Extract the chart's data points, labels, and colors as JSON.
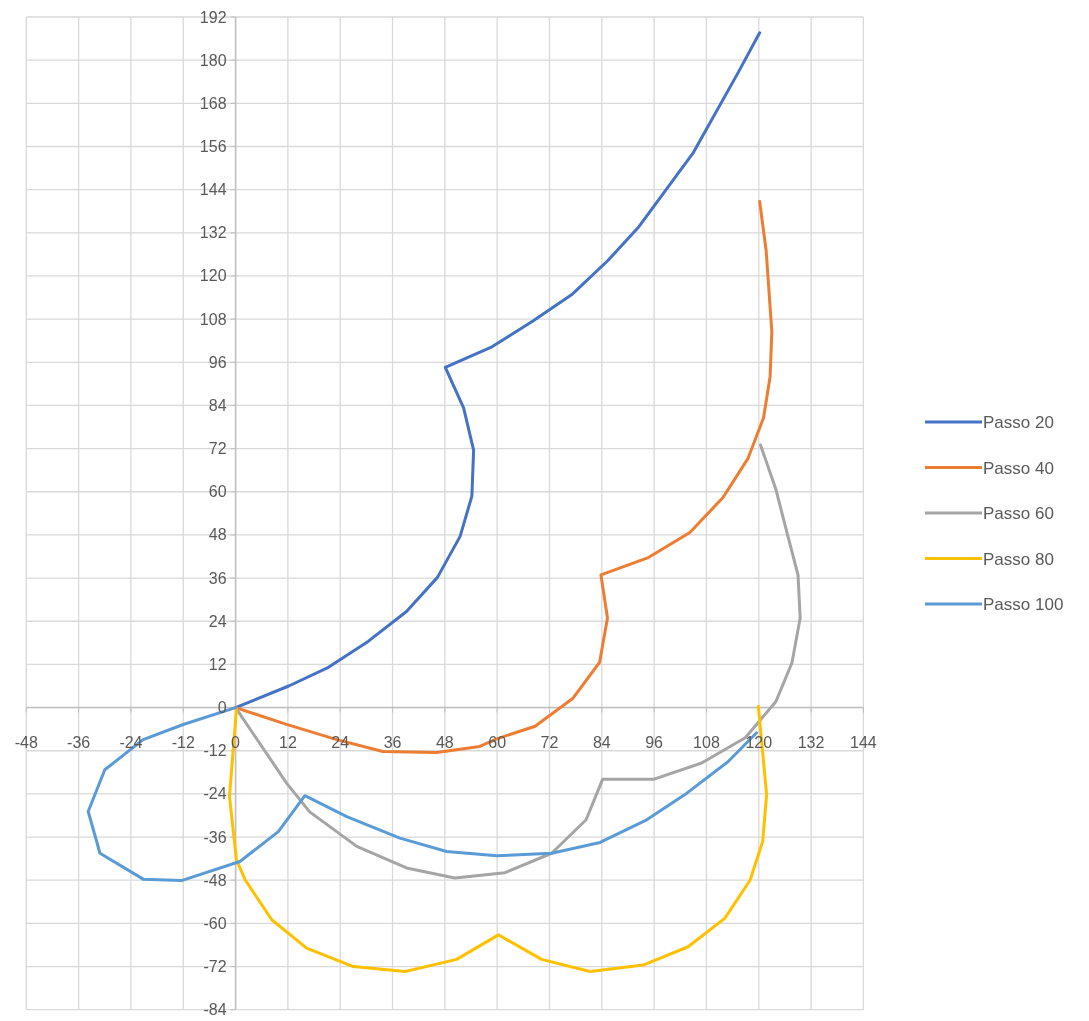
{
  "chart_data": {
    "type": "line",
    "xlim": [
      -48,
      144
    ],
    "ylim": [
      -84,
      192
    ],
    "xticks": [
      -48,
      -36,
      -24,
      -12,
      0,
      12,
      24,
      36,
      48,
      60,
      72,
      84,
      96,
      108,
      120,
      132,
      144
    ],
    "yticks": [
      -84,
      -72,
      -60,
      -48,
      -36,
      -24,
      -12,
      0,
      12,
      24,
      36,
      48,
      60,
      72,
      84,
      96,
      108,
      120,
      132,
      144,
      156,
      168,
      180,
      192
    ],
    "grid": true,
    "legend": "right",
    "marker": "none",
    "line_style": "solid",
    "series": [
      {
        "name": "Passo 20",
        "color": "#4472c4",
        "x": [
          0,
          12.2,
          21.3,
          30.4,
          39.2,
          46.3,
          51.5,
          54.2,
          54.6,
          52.3,
          48.1,
          58.8,
          68.2,
          77.3,
          85.4,
          92.3,
          105,
          115.3,
          120.2
        ],
        "values": [
          0,
          6,
          11.2,
          18.4,
          26.7,
          36.2,
          47.6,
          58.8,
          71.6,
          83.3,
          94.6,
          100.3,
          107.5,
          115,
          124.3,
          133.4,
          154.3,
          176.6,
          187.6
        ]
      },
      {
        "name": "Passo 40",
        "color": "#ed7d31",
        "x": [
          0,
          11.5,
          23.2,
          33.8,
          46.1,
          56,
          59.9,
          68.7,
          77.4,
          83.5,
          85.3,
          83.8,
          94.5,
          104.2,
          111.8,
          117.5,
          121.1,
          122.6,
          123,
          121.7,
          120.2
        ],
        "values": [
          0,
          -4.6,
          -8.9,
          -12.2,
          -12.5,
          -10.8,
          -8.7,
          -5.2,
          2.6,
          12.6,
          24.9,
          36.9,
          41.6,
          48.7,
          58.4,
          69.2,
          80.6,
          92,
          104.5,
          127,
          140.7
        ]
      },
      {
        "name": "Passo 60",
        "color": "#a5a5a5",
        "x": [
          0,
          11.7,
          17,
          27.8,
          39.2,
          50.3,
          61.8,
          72.5,
          80.4,
          84.2,
          96,
          106.9,
          116.9,
          123.9,
          127.6,
          129.5,
          129,
          126.5,
          123.9,
          120.4
        ],
        "values": [
          0,
          -21,
          -29,
          -38.6,
          -44.6,
          -47.4,
          -45.9,
          -40.5,
          -31.2,
          -19.9,
          -19.9,
          -15.4,
          -8.4,
          1.6,
          12.4,
          24.9,
          36.9,
          48.5,
          60.8,
          73
        ]
      },
      {
        "name": "Passo 80",
        "color": "#ffc000",
        "x": [
          0.2,
          -1.4,
          0.2,
          2.2,
          8.3,
          16.3,
          27,
          38.9,
          50.7,
          60.3,
          70.2,
          81.3,
          93.5,
          103.8,
          112.2,
          118,
          120.9,
          121.8,
          119.9
        ],
        "values": [
          -0.5,
          -24.7,
          -42.3,
          -47.9,
          -59,
          -66.9,
          -72,
          -73.4,
          -70,
          -63.2,
          -70,
          -73.4,
          -71.6,
          -66.5,
          -58.6,
          -48,
          -37.2,
          -24.2,
          0.4
        ]
      },
      {
        "name": "Passo 100",
        "color": "#5b9bd5",
        "x": [
          0,
          -12,
          -21.2,
          -30,
          -33.8,
          -31.1,
          -21.2,
          -12.4,
          1,
          9.8,
          15.9,
          25.5,
          37.7,
          48.4,
          59.9,
          72.5,
          83.6,
          94.3,
          103.5,
          113,
          119.5
        ],
        "values": [
          0,
          -4.7,
          -8.9,
          -17.3,
          -28.9,
          -40.5,
          -47.7,
          -48.1,
          -42.8,
          -34.5,
          -24.5,
          -30.3,
          -36.3,
          -40,
          -41.2,
          -40.5,
          -37.5,
          -31.2,
          -23.8,
          -15,
          -7
        ]
      }
    ]
  }
}
